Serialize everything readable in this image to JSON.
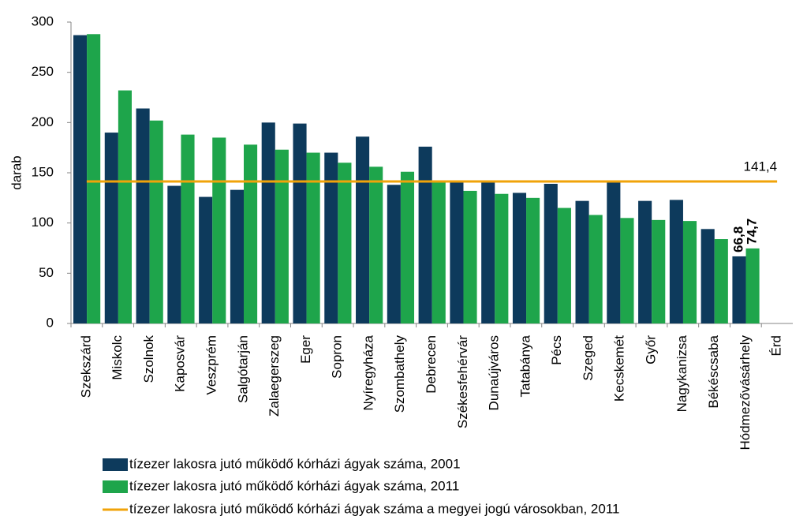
{
  "chart_data": {
    "type": "bar",
    "y_label": "darab",
    "categories": [
      "Szekszárd",
      "Miskolc",
      "Szolnok",
      "Kaposvár",
      "Veszprém",
      "Salgótarján",
      "Zalaegerszeg",
      "Eger",
      "Sopron",
      "Nyíregyháza",
      "Szombathely",
      "Debrecen",
      "Székesfehérvár",
      "Dunaújváros",
      "Tatabánya",
      "Pécs",
      "Szeged",
      "Kecskemét",
      "Győr",
      "Nagykanizsa",
      "Békéscsaba",
      "Hódmezővásárhely",
      "Érd"
    ],
    "series": [
      {
        "name": "tízezer lakosra jutó működő kórházi ágyak száma, 2001",
        "color": "#0d3a5c",
        "values": [
          287,
          190,
          214,
          137,
          126,
          133,
          200,
          199,
          170,
          186,
          138,
          176,
          141,
          141,
          130,
          139,
          122,
          141,
          122,
          123,
          94,
          66.8,
          null
        ],
        "value_labels": [
          null,
          null,
          null,
          null,
          null,
          null,
          null,
          null,
          null,
          null,
          null,
          null,
          null,
          null,
          null,
          null,
          null,
          null,
          null,
          null,
          null,
          "66,8",
          null
        ]
      },
      {
        "name": "tízezer lakosra jutó működő kórházi ágyak száma, 2011",
        "color": "#1ea54b",
        "values": [
          288,
          232,
          202,
          188,
          185,
          178,
          173,
          170,
          160,
          156,
          151,
          141,
          132,
          129,
          125,
          115,
          108,
          105,
          103,
          102,
          84,
          74.7,
          null
        ],
        "value_labels": [
          null,
          null,
          null,
          null,
          null,
          null,
          null,
          null,
          null,
          null,
          null,
          null,
          null,
          null,
          null,
          null,
          null,
          null,
          null,
          null,
          null,
          "74,7",
          null
        ]
      }
    ],
    "reference_line": {
      "name": "tízezer lakosra jutó működő kórházi ágyak száma a megyei jogú városokban, 2011",
      "value": 141.4,
      "label": "141,4",
      "color": "#f0a30a"
    },
    "ylim": [
      0,
      300
    ],
    "yticks": [
      0,
      50,
      100,
      150,
      200,
      250,
      300
    ],
    "grid": false
  }
}
